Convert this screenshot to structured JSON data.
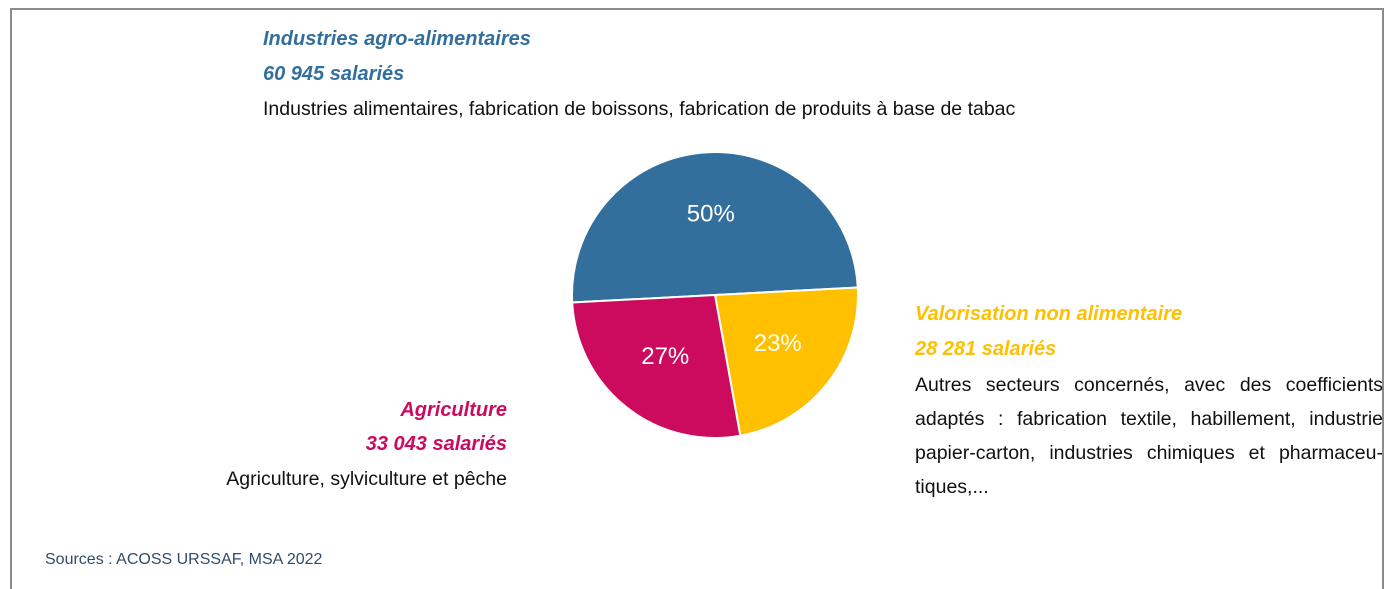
{
  "chart_data": {
    "type": "pie",
    "start_angle": 267,
    "slices": [
      {
        "name": "Industries agro-alimentaires",
        "count": "60 945 salariés",
        "description": "Industries alimentaires, fabrication de boissons, fabrication de produits à base de tabac",
        "color": "#336f9c"
      },
      {
        "name": "Valorisation non alimentaire",
        "count": "28 281 salariés",
        "description": "Autres secteurs concernés, avec des coefficients adaptés : fabrication textile, habillement, industrie papier-carton, industries chimiques et pharmaceu-tiques,...",
        "color": "#ffc000"
      },
      {
        "name": "Agriculture",
        "count": "33 043 salariés",
        "description": "Agriculture, sylviculture et pêche",
        "color": "#cc0a5e"
      }
    ],
    "values": [
      50,
      23,
      27
    ],
    "value_labels": [
      "50%",
      "23%",
      "27%"
    ],
    "source": "Sources : ACOSS URSSAF, MSA 2022"
  }
}
